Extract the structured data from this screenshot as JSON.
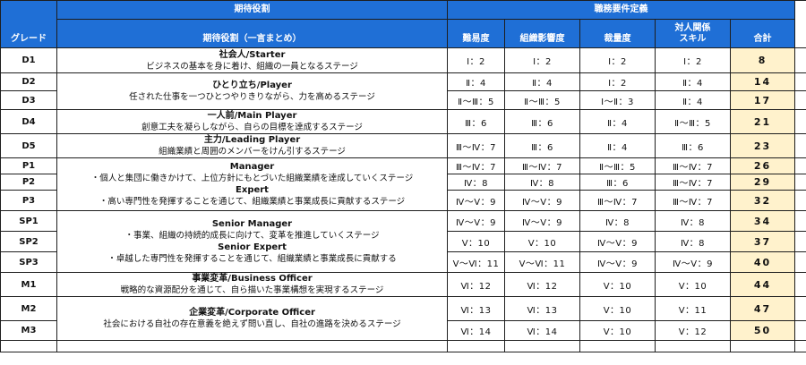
{
  "header": {
    "group_role": "期待役割",
    "group_requirements": "職務要件定義",
    "grade": "グレード",
    "role_summary": "期待役割（一言まとめ）",
    "difficulty": "難易度",
    "org_influence": "組織影響度",
    "discretion": "裁量度",
    "interpersonal_line1": "対人関係",
    "interpersonal_line2": "スキル",
    "total": "合計"
  },
  "roles": [
    {
      "title": "社会人/Starter",
      "desc": "ビジネスの基本を身に着け、組織の一員となるステージ"
    },
    {
      "title": "ひとり立ち/Player",
      "desc": "任された仕事を一つひとつやりきりながら、力を高めるステージ"
    },
    {
      "title": "一人前/Main Player",
      "desc": "創意工夫を凝らしながら、自らの目標を達成するステージ"
    },
    {
      "title": "主力/Leading Player",
      "desc": "組織業績と周囲のメンバーをけん引するステージ"
    },
    {
      "title": "Manager",
      "desc": "・個人と集団に働きかけて、上位方針にもとづいた組織業績を達成していくステージ"
    },
    {
      "title": "Expert",
      "desc": "・高い専門性を発揮することを通じて、組織業績と事業成長に貢献するステージ"
    },
    {
      "title": "Senior Manager",
      "desc": "・事業、組織の持続的成長に向けて、変革を推進していくステージ"
    },
    {
      "title": "Senior Expert",
      "desc": "・卓越した専門性を発揮することを通じて、組織業績と事業成長に貢献する"
    },
    {
      "title": "事業変革/Business Officer",
      "desc": "戦略的な資源配分を通じて、自ら描いた事業構想を実現するステージ"
    },
    {
      "title": "企業変革/Corporate Officer",
      "desc": "社会における自社の存在意義を絶えず問い直し、自社の進路を決めるステージ"
    }
  ],
  "grades": [
    {
      "code": "D1",
      "difficulty": "Ⅰ：2",
      "org": "Ⅰ：2",
      "discretion": "Ⅰ：2",
      "interpersonal": "Ⅰ：2",
      "total": "8"
    },
    {
      "code": "D2",
      "difficulty": "Ⅱ：4",
      "org": "Ⅱ：4",
      "discretion": "Ⅰ：2",
      "interpersonal": "Ⅱ：4",
      "total": "14"
    },
    {
      "code": "D3",
      "difficulty": "Ⅱ〜Ⅲ：5",
      "org": "Ⅱ〜Ⅲ：5",
      "discretion": "Ⅰ〜Ⅱ：3",
      "interpersonal": "Ⅱ：4",
      "total": "17"
    },
    {
      "code": "D4",
      "difficulty": "Ⅲ：6",
      "org": "Ⅲ：6",
      "discretion": "Ⅱ：4",
      "interpersonal": "Ⅱ〜Ⅲ：5",
      "total": "21"
    },
    {
      "code": "D5",
      "difficulty": "Ⅲ〜Ⅳ：7",
      "org": "Ⅲ：6",
      "discretion": "Ⅱ：4",
      "interpersonal": "Ⅲ：6",
      "total": "23"
    },
    {
      "code": "P1",
      "difficulty": "Ⅲ〜Ⅳ：7",
      "org": "Ⅲ〜Ⅳ：7",
      "discretion": "Ⅱ〜Ⅲ：5",
      "interpersonal": "Ⅲ〜Ⅳ：7",
      "total": "26"
    },
    {
      "code": "P2",
      "difficulty": "Ⅳ：8",
      "org": "Ⅳ：8",
      "discretion": "Ⅲ：6",
      "interpersonal": "Ⅲ〜Ⅳ：7",
      "total": "29"
    },
    {
      "code": "P3",
      "difficulty": "Ⅳ〜Ⅴ：9",
      "org": "Ⅳ〜Ⅴ：9",
      "discretion": "Ⅲ〜Ⅳ：7",
      "interpersonal": "Ⅲ〜Ⅳ：7",
      "total": "32"
    },
    {
      "code": "SP1",
      "difficulty": "Ⅳ〜Ⅴ：9",
      "org": "Ⅳ〜Ⅴ：9",
      "discretion": "Ⅳ：8",
      "interpersonal": "Ⅳ：8",
      "total": "34"
    },
    {
      "code": "SP2",
      "difficulty": "Ⅴ：10",
      "org": "Ⅴ：10",
      "discretion": "Ⅳ〜Ⅴ：9",
      "interpersonal": "Ⅳ：8",
      "total": "37"
    },
    {
      "code": "SP3",
      "difficulty": "Ⅴ〜Ⅵ：11",
      "org": "Ⅴ〜Ⅵ：11",
      "discretion": "Ⅳ〜Ⅴ：9",
      "interpersonal": "Ⅳ〜Ⅴ：9",
      "total": "40"
    },
    {
      "code": "M1",
      "difficulty": "Ⅵ：12",
      "org": "Ⅵ：12",
      "discretion": "Ⅴ：10",
      "interpersonal": "Ⅴ：10",
      "total": "44"
    },
    {
      "code": "M2",
      "difficulty": "Ⅵ：13",
      "org": "Ⅵ：13",
      "discretion": "Ⅴ：10",
      "interpersonal": "Ⅴ：11",
      "total": "47"
    },
    {
      "code": "M3",
      "difficulty": "Ⅵ：14",
      "org": "Ⅵ：14",
      "discretion": "Ⅴ：10",
      "interpersonal": "Ⅴ：12",
      "total": "50"
    }
  ],
  "colors": {
    "header_bg": "#1f6fd6",
    "header_text": "#ffffff",
    "total_bg": "#fff2cc",
    "border": "#1e1e1e"
  }
}
